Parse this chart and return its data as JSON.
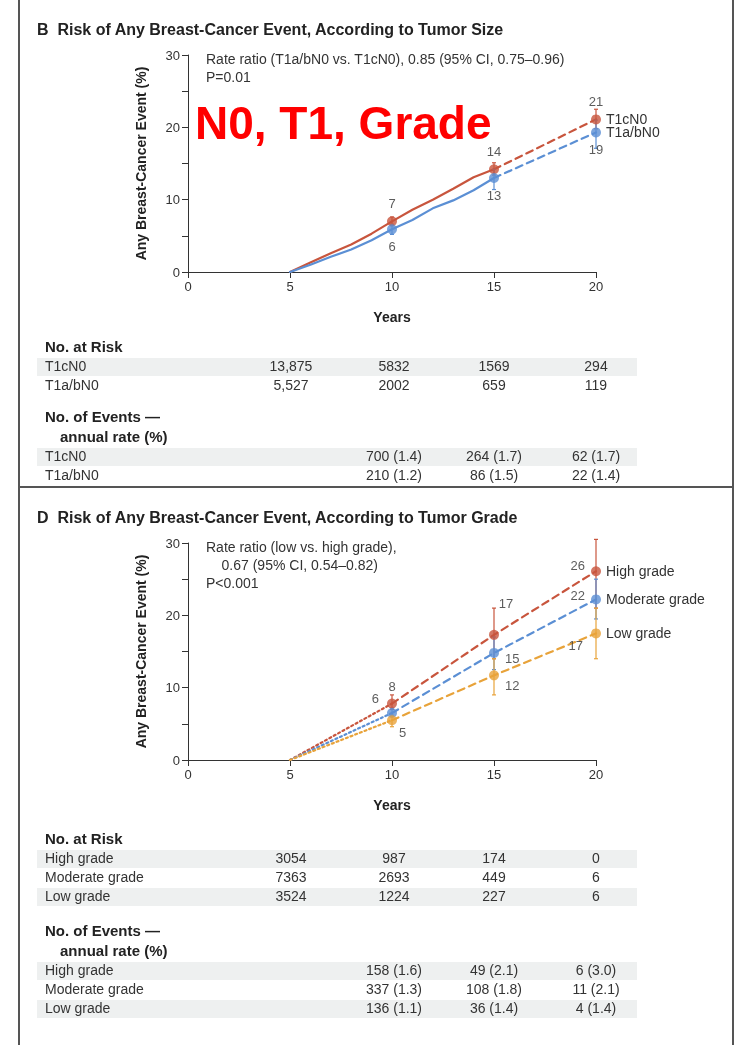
{
  "chart_data": [
    {
      "type": "line",
      "title": "B  Risk of Any Breast-Cancer Event, According to Tumor Size",
      "xlabel": "Years",
      "ylabel": "Any Breast-Cancer Event (%)",
      "xlim": [
        0,
        20
      ],
      "xticks": [
        0,
        5,
        10,
        15,
        20
      ],
      "ylim": [
        0,
        30
      ],
      "yticks": [
        0,
        {
          "value": 5,
          "label": null
        },
        10,
        {
          "value": 15,
          "label": null
        },
        20,
        {
          "value": 25,
          "label": null
        },
        30
      ],
      "annotations": [
        "Rate ratio (T1a/bN0 vs. T1cN0), 0.85 (95% CI, 0.75–0.96)\nP=0.01",
        "N0, T1, Grade"
      ],
      "series": [
        {
          "type": "line",
          "color": "#c8553d",
          "line_style": "solid",
          "x": [
            5,
            6,
            7,
            8,
            9,
            10,
            11,
            12,
            13,
            14,
            15
          ],
          "values": [
            0,
            1.3,
            2.6,
            3.8,
            5.3,
            7.0,
            8.6,
            10.0,
            11.5,
            13.1,
            14.2
          ]
        },
        {
          "type": "line",
          "color": "#5b8fd4",
          "line_style": "solid",
          "x": [
            5,
            6,
            7,
            8,
            9,
            10,
            11,
            12,
            13,
            14,
            15
          ],
          "values": [
            0,
            1.0,
            2.1,
            3.1,
            4.4,
            5.9,
            7.2,
            8.8,
            9.9,
            11.3,
            13.0
          ]
        },
        {
          "type": "line",
          "color": "#c8553d",
          "line_style": "dashed",
          "x": [
            15,
            20
          ],
          "values": [
            14.2,
            21.1
          ]
        },
        {
          "type": "line",
          "color": "#5b8fd4",
          "line_style": "dashed",
          "x": [
            15,
            20
          ],
          "values": [
            13.0,
            19.3
          ]
        },
        {
          "type": "scatter",
          "name": "T1cN0",
          "color": "#c8553d",
          "marker": "circle",
          "x": [
            10,
            15,
            20
          ],
          "values": [
            7.0,
            14.2,
            21.1
          ],
          "errors": [
            [
              6.4,
              7.6
            ],
            [
              13.4,
              15.1
            ],
            [
              19.8,
              22.5
            ]
          ],
          "value_labels": [
            "7",
            "14",
            "21"
          ]
        },
        {
          "type": "scatter",
          "name": "T1a/bN0",
          "color": "#5b8fd4",
          "marker": "circle",
          "x": [
            10,
            15,
            20
          ],
          "values": [
            5.9,
            13.0,
            19.3
          ],
          "errors": [
            [
              5.2,
              6.6
            ],
            [
              11.4,
              14.2
            ],
            [
              17.1,
              21.0
            ]
          ],
          "value_labels": [
            "6",
            "13",
            "19"
          ]
        }
      ]
    },
    {
      "type": "other",
      "title": "No. at Risk",
      "y_categories": [
        "T1cN0",
        "T1a/bN0"
      ],
      "cell_labels": [
        [
          "13,875",
          "5832",
          "1569",
          "294"
        ],
        [
          "5,527",
          "2002",
          "659",
          "119"
        ]
      ]
    },
    {
      "type": "other",
      "title": "No. of Events —\nannual rate (%)",
      "y_categories": [
        "T1cN0",
        "T1a/bN0"
      ],
      "cell_labels": [
        [
          null,
          "700 (1.4)",
          "264 (1.7)",
          "62 (1.7)"
        ],
        [
          null,
          "210 (1.2)",
          "86 (1.5)",
          "22 (1.4)"
        ]
      ]
    },
    {
      "type": "line",
      "title": "D  Risk of Any Breast-Cancer Event, According to Tumor Grade",
      "xlabel": "Years",
      "ylabel": "Any Breast-Cancer Event (%)",
      "xlim": [
        0,
        20
      ],
      "xticks": [
        0,
        5,
        10,
        15,
        20
      ],
      "ylim": [
        0,
        30
      ],
      "yticks": [
        0,
        {
          "value": 5,
          "label": null
        },
        10,
        {
          "value": 15,
          "label": null
        },
        20,
        {
          "value": 25,
          "label": null
        },
        30
      ],
      "annotations": [
        "Rate ratio (low vs. high grade),\n    0.67 (95% CI, 0.54–0.82)\nP<0.001"
      ],
      "series": [
        {
          "type": "line",
          "color": "#c8553d",
          "line_style": "dotted",
          "x": [
            5,
            10
          ],
          "values": [
            0,
            7.8
          ]
        },
        {
          "type": "line",
          "color": "#5b8fd4",
          "line_style": "dotted",
          "x": [
            5,
            10
          ],
          "values": [
            0,
            6.5
          ]
        },
        {
          "type": "line",
          "color": "#e8a33a",
          "line_style": "dotted",
          "x": [
            5,
            10
          ],
          "values": [
            0,
            5.5
          ]
        },
        {
          "type": "line",
          "color": "#c8553d",
          "line_style": "dashed",
          "x": [
            10,
            15,
            20
          ],
          "values": [
            7.8,
            17.3,
            26.1
          ]
        },
        {
          "type": "line",
          "color": "#5b8fd4",
          "line_style": "dashed",
          "x": [
            10,
            15,
            20
          ],
          "values": [
            6.5,
            14.8,
            22.2
          ]
        },
        {
          "type": "line",
          "color": "#e8a33a",
          "line_style": "dashed",
          "x": [
            10,
            15,
            20
          ],
          "values": [
            5.5,
            11.7,
            17.5
          ]
        },
        {
          "type": "scatter",
          "name": "High grade",
          "color": "#c8553d",
          "marker": "circle",
          "x": [
            10,
            15,
            20
          ],
          "values": [
            7.8,
            17.3,
            26.1
          ],
          "errors": [
            [
              7.0,
              9.0
            ],
            [
              14.0,
              21.0
            ],
            [
              21.0,
              30.5
            ]
          ],
          "value_labels": [
            "8",
            "17",
            "26"
          ]
        },
        {
          "type": "scatter",
          "name": "Moderate grade",
          "color": "#5b8fd4",
          "marker": "circle",
          "x": [
            10,
            15,
            20
          ],
          "values": [
            6.5,
            14.8,
            22.2
          ],
          "errors": [
            [
              6.0,
              7.2
            ],
            [
              12.5,
              17.0
            ],
            [
              19.5,
              25.0
            ]
          ],
          "value_labels": [
            "6",
            "15",
            "22"
          ]
        },
        {
          "type": "scatter",
          "name": "Low grade",
          "color": "#e8a33a",
          "marker": "circle",
          "x": [
            10,
            15,
            20
          ],
          "values": [
            5.5,
            11.7,
            17.5
          ],
          "errors": [
            [
              4.6,
              6.2
            ],
            [
              9.0,
              14.0
            ],
            [
              14.0,
              21.0
            ]
          ],
          "value_labels": [
            "5",
            "12",
            "17"
          ]
        }
      ]
    },
    {
      "type": "other",
      "title": "No. at Risk",
      "y_categories": [
        "High grade",
        "Moderate grade",
        "Low grade"
      ],
      "cell_labels": [
        [
          "3054",
          "987",
          "174",
          "0"
        ],
        [
          "7363",
          "2693",
          "449",
          "6"
        ],
        [
          "3524",
          "1224",
          "227",
          "6"
        ]
      ]
    },
    {
      "type": "other",
      "title": "No. of Events —\nannual rate (%)",
      "y_categories": [
        "High grade",
        "Moderate grade",
        "Low grade"
      ],
      "cell_labels": [
        [
          null,
          "158 (1.6)",
          "49 (2.1)",
          "6 (3.0)"
        ],
        [
          null,
          "337 (1.3)",
          "108 (1.8)",
          "11 (2.1)"
        ],
        [
          null,
          "136 (1.1)",
          "36 (1.4)",
          "4 (1.4)"
        ]
      ]
    }
  ]
}
